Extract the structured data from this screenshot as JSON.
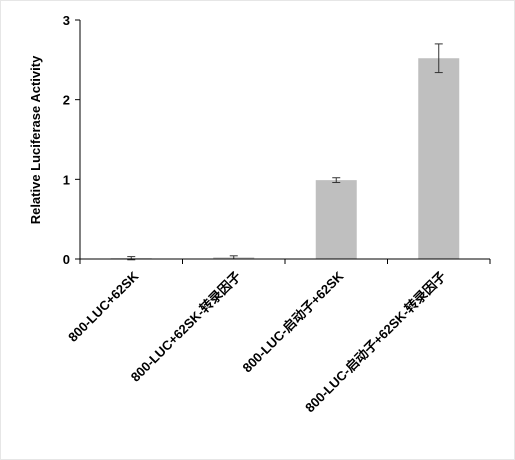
{
  "chart_data": {
    "type": "bar",
    "ylabel": "Relative Luciferase Activity",
    "categories": [
      "800-LUC+62SK",
      "800-LUC+62SK-转录因子",
      "800-LUC-启动子+62SK",
      "800-LUC-启动子+62SK-转录因子"
    ],
    "values": [
      0.01,
      0.02,
      0.99,
      2.52
    ],
    "errors": [
      0.02,
      0.02,
      0.03,
      0.18
    ],
    "color": "#bfbfbf",
    "ylim": [
      0,
      3
    ],
    "yticks": [
      0,
      1,
      2,
      3
    ],
    "grid": false
  }
}
